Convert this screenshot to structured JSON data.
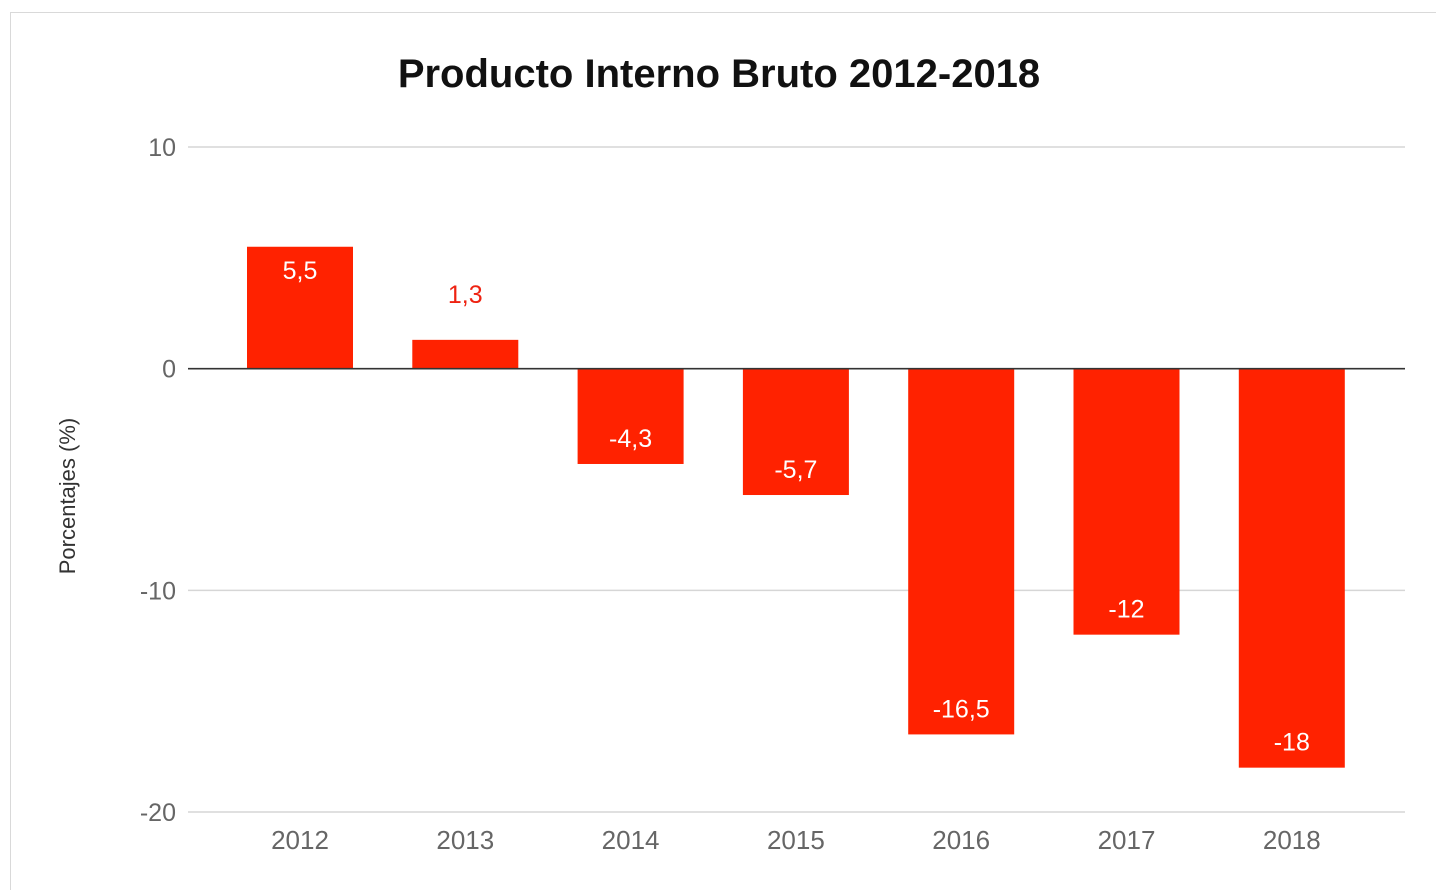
{
  "chart_data": {
    "type": "bar",
    "title": "Producto Interno Bruto 2012-2018",
    "xlabel": "",
    "ylabel": "Porcentajes (%)",
    "categories": [
      "2012",
      "2013",
      "2014",
      "2015",
      "2016",
      "2017",
      "2018"
    ],
    "values": [
      5.5,
      1.3,
      -4.3,
      -5.7,
      -16.5,
      -12,
      -18
    ],
    "data_labels": [
      "5,5",
      "1,3",
      "-4,3",
      "-5,7",
      "-16,5",
      "-12",
      "-18"
    ],
    "ylim": [
      -20,
      10
    ],
    "yticks": [
      10,
      0,
      -10,
      -20
    ],
    "ytick_labels": [
      "10",
      "0",
      "-10",
      "-20"
    ],
    "bar_color": "#ff2200",
    "grid": true,
    "legend": "none"
  }
}
